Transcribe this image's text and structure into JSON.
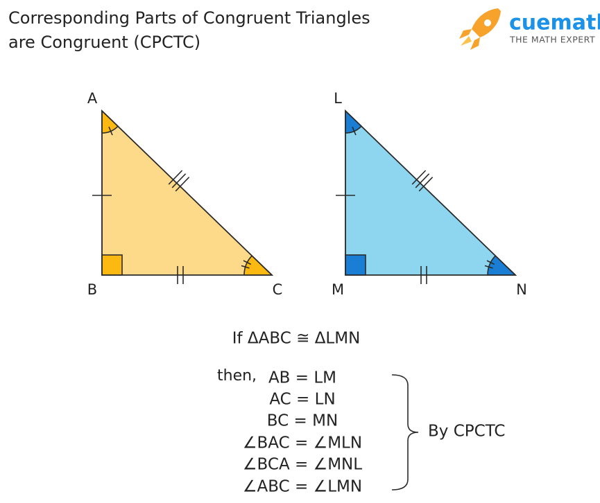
{
  "title": {
    "lines": [
      "Corresponding Parts of Congruent Triangles",
      "are Congruent (CPCTC)"
    ]
  },
  "logo": {
    "brand": "cuemath",
    "tagline": "THE MATH EXPERT"
  },
  "triangles": [
    {
      "vertices": [
        "A",
        "B",
        "C"
      ]
    },
    {
      "vertices": [
        "L",
        "M",
        "N"
      ]
    }
  ],
  "statement": "If ΔABC ≅ ΔLMN",
  "then": "then,",
  "equalities": [
    "AB = LM",
    "AC = LN",
    "BC = MN",
    "∠BAC = ∠MLN",
    "∠BCA = ∠MNL",
    "∠ABC = ∠LMN"
  ],
  "conclusion": "By CPCTC"
}
